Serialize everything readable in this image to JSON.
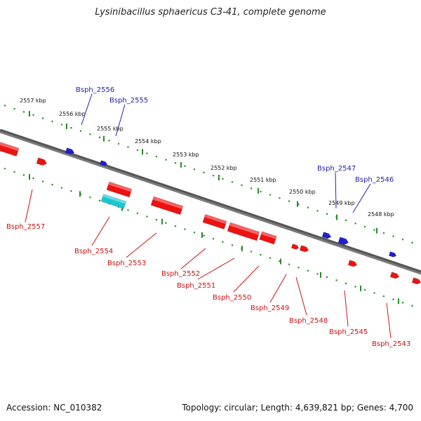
{
  "title": "Lysinibacillus sphaericus C3-41, complete genome",
  "footer": {
    "accession": "Accession: NC_010382",
    "topology": "Topology: circular; Length: 4,639,821 bp; Genes: 4,700"
  },
  "colors": {
    "forward_gene": "#1f1fd0",
    "reverse_gene": "#ee1111",
    "highlight_gene": "#18c8d0",
    "backbone": "#7a7a7a",
    "tick": "#2a8a2a",
    "forward_label": "#2020b0",
    "reverse_label": "#cc1111"
  },
  "kbp_ticks": [
    "2557 kbp",
    "2556 kbp",
    "2555 kbp",
    "2554 kbp",
    "2553 kbp",
    "2552 kbp",
    "2551 kbp",
    "2550 kbp",
    "2549 kbp",
    "2548 kbp"
  ],
  "forward_labels": [
    "Bsph_2556",
    "Bsph_2555",
    "Bsph_2547",
    "Bsph_2546"
  ],
  "reverse_labels": [
    "Bsph_2557",
    "Bsph_2554",
    "Bsph_2553",
    "Bsph_2552",
    "Bsph_2551",
    "Bsph_2550",
    "Bsph_2549",
    "Bsph_2548",
    "Bsph_2545",
    "Bsph_2543"
  ]
}
